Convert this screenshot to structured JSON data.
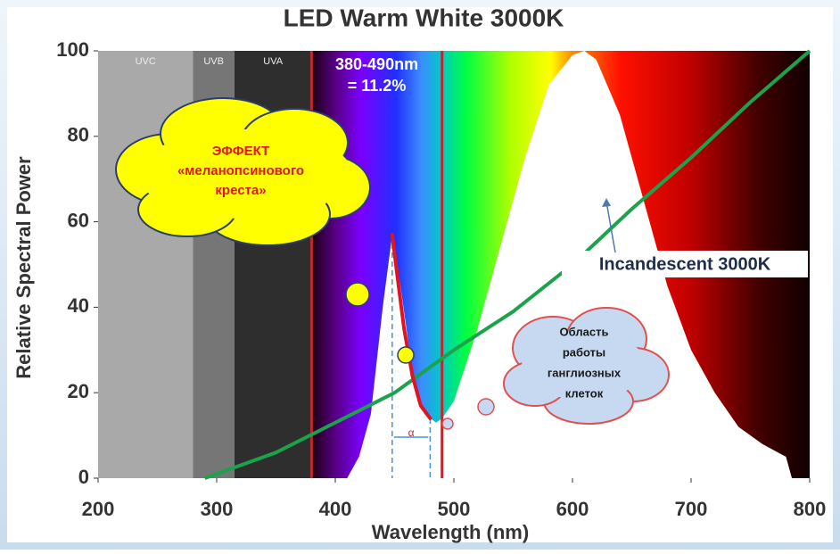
{
  "chart_data": {
    "type": "line",
    "title": "LED Warm White 3000K",
    "x_label": "Wavelength (nm)",
    "y_label": "Relative Spectral Power",
    "xlim": [
      200,
      800
    ],
    "ylim": [
      0,
      100
    ],
    "xticks": [
      200,
      300,
      400,
      500,
      600,
      700,
      800
    ],
    "yticks": [
      0,
      20,
      40,
      60,
      80,
      100
    ],
    "grid": false,
    "bands": [
      {
        "label": "UVC",
        "range": [
          200,
          280
        ],
        "color": "#a9a9a9"
      },
      {
        "label": "UVB",
        "range": [
          280,
          315
        ],
        "color": "#767676"
      },
      {
        "label": "UVA",
        "range": [
          315,
          380
        ],
        "color": "#2e2e2e"
      }
    ],
    "visible_range": [
      380,
      800
    ],
    "bounds": [
      380,
      490
    ],
    "bounds_color": "#c0282d",
    "range_label": "380-490nm",
    "range_share": "= 11.2%",
    "peak_lines": [
      448,
      480
    ],
    "peak_lines_color": "#4a90d9",
    "alpha_label": "α",
    "series": [
      {
        "name": "LED",
        "color": "#ffffff",
        "x": [
          410,
          420,
          430,
          440,
          448,
          455,
          465,
          475,
          485,
          490,
          500,
          520,
          540,
          560,
          580,
          600,
          610,
          620,
          640,
          660,
          680,
          700,
          720,
          740,
          760,
          780,
          785
        ],
        "values": [
          0,
          5,
          15,
          40,
          57,
          45,
          25,
          15,
          13,
          14,
          18,
          35,
          55,
          75,
          92,
          99,
          100,
          98,
          85,
          65,
          45,
          30,
          20,
          12,
          8,
          5,
          0
        ]
      },
      {
        "name": "Incandescent 3000K",
        "color": "#1aa34a",
        "x": [
          290,
          300,
          350,
          400,
          450,
          500,
          550,
          600,
          650,
          700,
          750,
          800
        ],
        "values": [
          0,
          1,
          6,
          13,
          20,
          30,
          39,
          50,
          63,
          75,
          88,
          100
        ]
      }
    ],
    "highlight": {
      "color": "#e0141e",
      "x": [
        448,
        452,
        458,
        465,
        472,
        480
      ],
      "values": [
        57,
        48,
        35,
        24,
        17,
        14
      ]
    },
    "cloud_effect": [
      "ЭФФЕКТ",
      "«меланопсинового",
      "креста»"
    ],
    "cloud_ganglion": [
      "Область",
      "работы",
      "ганглиозных",
      "клеток"
    ]
  }
}
